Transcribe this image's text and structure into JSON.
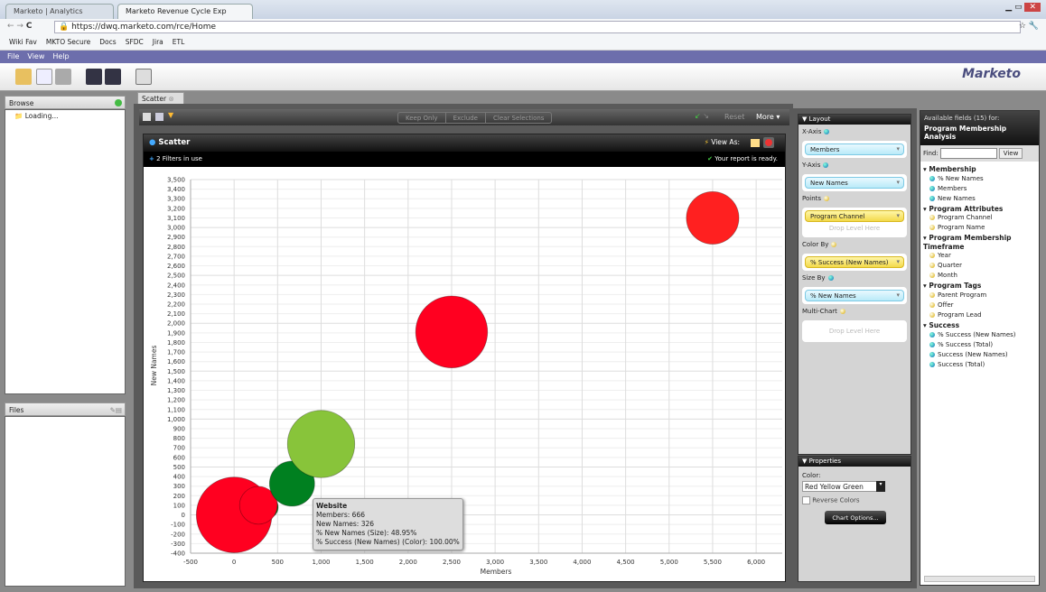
{
  "browser": {
    "tabs": [
      {
        "label": "Marketo | Analytics"
      },
      {
        "label": "Marketo Revenue Cycle Exp"
      }
    ],
    "url": "https://dwq.marketo.com/rce/Home",
    "bookmarks": [
      "Wiki Fav",
      "MKTO Secure",
      "Docs",
      "SFDC",
      "Jira",
      "ETL"
    ]
  },
  "menu": [
    "File",
    "View",
    "Help"
  ],
  "logo": "Marketo",
  "left": {
    "browse_title": "Browse",
    "loading": "Loading...",
    "files_title": "Files"
  },
  "doc_tab": "Scatter",
  "toolbar": {
    "keep_only": "Keep Only",
    "exclude": "Exclude",
    "clear": "Clear Selections",
    "reset": "Reset",
    "more": "More"
  },
  "chart_panel": {
    "title": "Scatter",
    "view_as": "View As:",
    "filters": "2 Filters in use",
    "status": "Your report is ready."
  },
  "tooltip": {
    "title": "Website",
    "lines": [
      "Members: 666",
      "New Names: 326",
      "% New Names (Size): 48.95%",
      "% Success (New Names) (Color): 100.00%"
    ]
  },
  "chart_data": {
    "type": "scatter",
    "xlabel": "Members",
    "ylabel": "New Names",
    "xlim": [
      -500,
      6300
    ],
    "ylim": [
      -400,
      3500
    ],
    "grid": true,
    "x_ticks": [
      -500,
      0,
      500,
      1000,
      1500,
      2000,
      2500,
      3000,
      3500,
      4000,
      4500,
      5000,
      5500,
      6000
    ],
    "y_ticks": [
      -400,
      -300,
      -200,
      -100,
      0,
      100,
      200,
      300,
      400,
      500,
      600,
      700,
      800,
      900,
      1000,
      1100,
      1200,
      1300,
      1400,
      1500,
      1600,
      1700,
      1800,
      1900,
      2000,
      2100,
      2200,
      2300,
      2400,
      2500,
      2600,
      2700,
      2800,
      2900,
      3000,
      3100,
      3200,
      3300,
      3400,
      3500
    ],
    "points": [
      {
        "x": 0,
        "y": 0,
        "size": 82,
        "color": "#ff0020"
      },
      {
        "x": 380,
        "y": 80,
        "size": 24,
        "color": "#008020"
      },
      {
        "x": 280,
        "y": 100,
        "size": 41,
        "color": "#ff0020"
      },
      {
        "x": 666,
        "y": 326,
        "size": 48.95,
        "color": "#008020",
        "label": "Website"
      },
      {
        "x": 1000,
        "y": 740,
        "size": 73,
        "color": "#88c43a"
      },
      {
        "x": 2500,
        "y": 1910,
        "size": 78,
        "color": "#ff0020"
      },
      {
        "x": 5500,
        "y": 3100,
        "size": 57,
        "color": "#ff2020"
      }
    ]
  },
  "layout": {
    "title": "Layout",
    "x_axis": "X-Axis",
    "x_value": "Members",
    "y_axis": "Y-Axis",
    "y_value": "New Names",
    "points": "Points",
    "points_value": "Program Channel",
    "drop": "Drop Level Here",
    "color_by": "Color By",
    "color_value": "% Success (New Names)",
    "size_by": "Size By",
    "size_value": "% New Names",
    "multi": "Multi-Chart"
  },
  "properties": {
    "title": "Properties",
    "color_label": "Color:",
    "color_value": "Red Yellow Green",
    "reverse": "Reverse Colors",
    "chart_options": "Chart Options..."
  },
  "fields": {
    "header": "Available fields (15) for:",
    "subject": "Program Membership Analysis",
    "find": "Find:",
    "view": "View",
    "groups": [
      {
        "name": "Membership",
        "items": [
          {
            "n": "% New Names",
            "t": "b"
          },
          {
            "n": "Members",
            "t": "b"
          },
          {
            "n": "New Names",
            "t": "b"
          }
        ]
      },
      {
        "name": "Program Attributes",
        "items": [
          {
            "n": "Program Channel",
            "t": "y"
          },
          {
            "n": "Program Name",
            "t": "y"
          }
        ]
      },
      {
        "name": "Program Membership Timeframe",
        "items": [
          {
            "n": "Year",
            "t": "y"
          },
          {
            "n": "Quarter",
            "t": "y"
          },
          {
            "n": "Month",
            "t": "y"
          }
        ]
      },
      {
        "name": "Program Tags",
        "items": [
          {
            "n": "Parent Program",
            "t": "y"
          },
          {
            "n": "Offer",
            "t": "y"
          },
          {
            "n": "Program Lead",
            "t": "y"
          }
        ]
      },
      {
        "name": "Success",
        "items": [
          {
            "n": "% Success (New Names)",
            "t": "b"
          },
          {
            "n": "% Success (Total)",
            "t": "b"
          },
          {
            "n": "Success (New Names)",
            "t": "b"
          },
          {
            "n": "Success (Total)",
            "t": "b"
          }
        ]
      }
    ]
  }
}
